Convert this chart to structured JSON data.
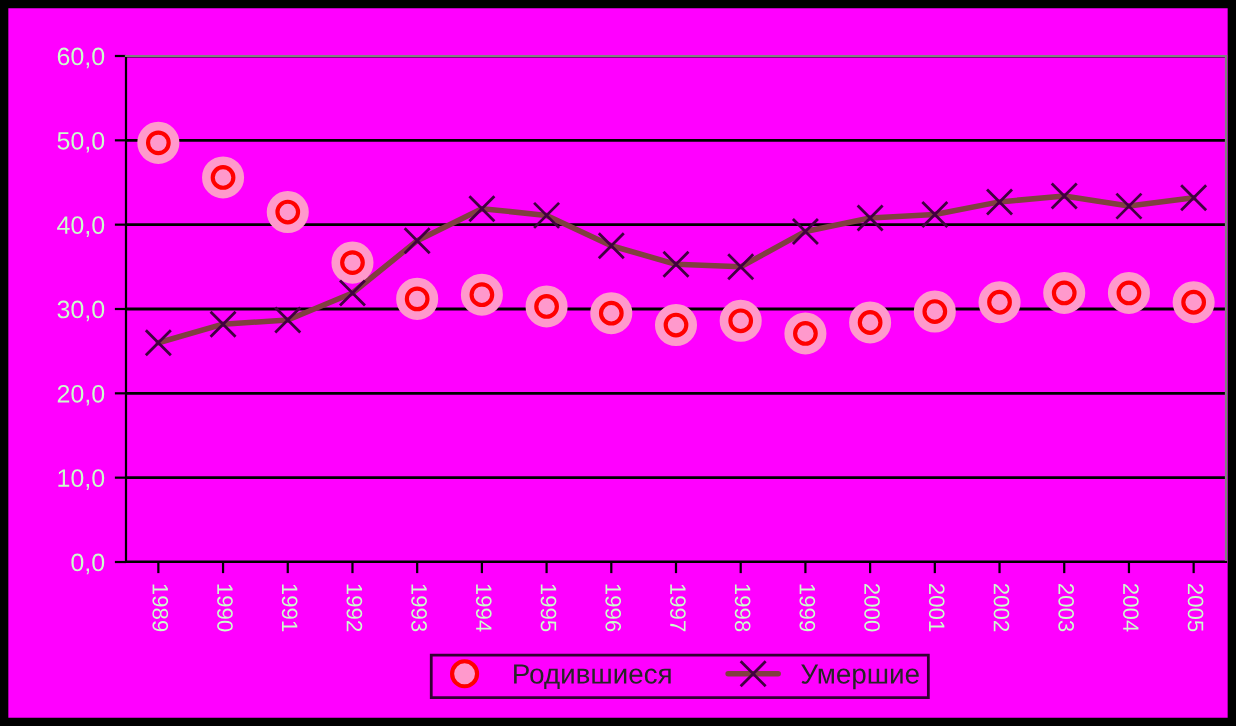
{
  "chart_data": {
    "type": "line",
    "categories": [
      "1989",
      "1990",
      "1991",
      "1992",
      "1993",
      "1994",
      "1995",
      "1996",
      "1997",
      "1998",
      "1999",
      "2000",
      "2001",
      "2002",
      "2003",
      "2004",
      "2005"
    ],
    "series": [
      {
        "name": "Родившиеся",
        "type": "scatter",
        "marker": "circle",
        "color": "#ff0000",
        "values": [
          49.7,
          45.6,
          41.5,
          35.5,
          31.2,
          31.7,
          30.3,
          29.5,
          28.1,
          28.6,
          27.1,
          28.4,
          29.7,
          30.8,
          31.9,
          31.9,
          30.8
        ]
      },
      {
        "name": "Умершие",
        "marker": "cross",
        "line_style": "solid",
        "color": "#804040",
        "values": [
          26.0,
          28.2,
          28.7,
          31.9,
          38.1,
          41.9,
          41.1,
          37.5,
          35.3,
          35.0,
          39.2,
          40.8,
          41.2,
          42.7,
          43.4,
          42.2,
          43.2
        ]
      }
    ],
    "ylim": [
      0,
      60
    ],
    "yticks": [
      {
        "value": 0,
        "label": "0,0"
      },
      {
        "value": 10,
        "label": "10,0"
      },
      {
        "value": 20,
        "label": "20,0"
      },
      {
        "value": 30,
        "label": "30,0"
      },
      {
        "value": 40,
        "label": "40,0"
      },
      {
        "value": 50,
        "label": "50,0"
      },
      {
        "value": 60,
        "label": "60,0"
      }
    ],
    "grid": "y",
    "legend": "bottom"
  }
}
